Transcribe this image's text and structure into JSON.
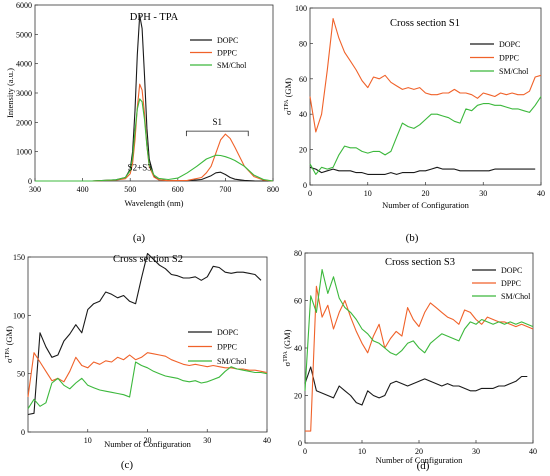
{
  "colors": {
    "black": "#1a1a1a",
    "orange": "#f0622a",
    "green": "#3cb83c"
  },
  "chart_data": [
    {
      "panel_label": "(a)",
      "type": "line",
      "title": "DPH - TPA",
      "xlabel": "Wavelength (nm)",
      "ylabel": "Intensity (a.u.)",
      "xlim": [
        300,
        800
      ],
      "ylim": [
        0,
        6000
      ],
      "xticks": [
        300,
        400,
        500,
        600,
        700,
        800
      ],
      "yticks": [
        0,
        1000,
        2000,
        3000,
        4000,
        5000,
        6000
      ],
      "legend_position": "top-right",
      "annotations": [
        "S1",
        "S2+S3"
      ],
      "series": [
        {
          "name": "DOPC",
          "color": "#1a1a1a",
          "x": [
            300,
            420,
            470,
            490,
            500,
            505,
            510,
            515,
            520,
            525,
            530,
            535,
            540,
            550,
            560,
            580,
            620,
            650,
            670,
            680,
            690,
            700,
            710,
            720,
            740,
            760,
            800
          ],
          "y": [
            0,
            0,
            40,
            120,
            400,
            1000,
            2400,
            4300,
            5650,
            5200,
            3600,
            1800,
            750,
            150,
            40,
            10,
            10,
            50,
            180,
            280,
            300,
            220,
            120,
            60,
            20,
            5,
            0
          ]
        },
        {
          "name": "DPPC",
          "color": "#f0622a",
          "x": [
            300,
            420,
            470,
            490,
            500,
            505,
            510,
            515,
            520,
            525,
            530,
            535,
            540,
            550,
            560,
            580,
            620,
            650,
            660,
            670,
            680,
            690,
            700,
            710,
            720,
            740,
            760,
            780,
            800
          ],
          "y": [
            0,
            0,
            30,
            80,
            250,
            600,
            1400,
            2500,
            3300,
            3100,
            2300,
            1200,
            500,
            130,
            40,
            10,
            20,
            120,
            280,
            500,
            950,
            1400,
            1600,
            1450,
            1150,
            500,
            150,
            30,
            0
          ]
        },
        {
          "name": "SM/Chol",
          "color": "#3cb83c",
          "x": [
            300,
            420,
            470,
            490,
            500,
            505,
            510,
            515,
            520,
            525,
            530,
            535,
            540,
            550,
            560,
            580,
            600,
            620,
            640,
            660,
            680,
            690,
            700,
            710,
            720,
            740,
            760,
            780,
            800
          ],
          "y": [
            0,
            0,
            40,
            120,
            350,
            800,
            1700,
            2450,
            2800,
            2700,
            2100,
            1200,
            550,
            200,
            90,
            50,
            100,
            280,
            500,
            750,
            880,
            870,
            830,
            770,
            700,
            500,
            200,
            50,
            0
          ]
        }
      ]
    },
    {
      "panel_label": "(b)",
      "type": "line",
      "title": "Cross section S1",
      "xlabel": "Number of Configuration",
      "ylabel": "σTPA (GM)",
      "xlim": [
        0,
        40
      ],
      "ylim": [
        0,
        100
      ],
      "xticks": [
        0,
        10,
        20,
        30,
        40
      ],
      "yticks": [
        0,
        20,
        40,
        60,
        80,
        100
      ],
      "legend_position": "top-right",
      "series": [
        {
          "name": "DOPC",
          "color": "#1a1a1a",
          "x": [
            0,
            1,
            2,
            3,
            4,
            5,
            6,
            7,
            8,
            9,
            10,
            11,
            12,
            13,
            14,
            15,
            16,
            17,
            18,
            19,
            20,
            21,
            22,
            23,
            24,
            25,
            26,
            27,
            28,
            29,
            30,
            31,
            32,
            33,
            34,
            35,
            36,
            37,
            38,
            39
          ],
          "y": [
            10,
            9,
            7,
            8,
            9,
            8,
            8,
            8,
            7,
            7,
            6,
            6,
            6,
            6,
            7,
            6,
            7,
            7,
            7,
            8,
            8,
            9,
            10,
            9,
            9,
            9,
            8,
            8,
            8,
            8,
            8,
            8,
            9,
            9,
            9,
            9,
            9,
            9,
            9,
            9
          ]
        },
        {
          "name": "DPPC",
          "color": "#f0622a",
          "x": [
            0,
            1,
            2,
            3,
            4,
            5,
            6,
            7,
            8,
            9,
            10,
            11,
            12,
            13,
            14,
            15,
            16,
            17,
            18,
            19,
            20,
            21,
            22,
            23,
            24,
            25,
            26,
            27,
            28,
            29,
            30,
            31,
            32,
            33,
            34,
            35,
            36,
            37,
            38,
            39,
            40
          ],
          "y": [
            50,
            30,
            40,
            65,
            94,
            83,
            75,
            70,
            65,
            59,
            55,
            61,
            60,
            62,
            58,
            56,
            54,
            55,
            54,
            55,
            52,
            51,
            51,
            52,
            52,
            54,
            52,
            52,
            51,
            49,
            52,
            51,
            50,
            52,
            51,
            52,
            51,
            51,
            53,
            61,
            62
          ]
        },
        {
          "name": "SM/Chol",
          "color": "#3cb83c",
          "x": [
            0,
            1,
            2,
            3,
            4,
            5,
            6,
            7,
            8,
            9,
            10,
            11,
            12,
            13,
            14,
            15,
            16,
            17,
            18,
            19,
            20,
            21,
            22,
            23,
            24,
            25,
            26,
            27,
            28,
            29,
            30,
            31,
            32,
            33,
            34,
            35,
            36,
            37,
            38,
            39,
            40
          ],
          "y": [
            12,
            6,
            10,
            9,
            10,
            17,
            22,
            21,
            21,
            19,
            18,
            19,
            19,
            17,
            19,
            27,
            35,
            33,
            32,
            34,
            37,
            40,
            40,
            39,
            38,
            36,
            35,
            43,
            42,
            45,
            46,
            46,
            45,
            45,
            44,
            43,
            43,
            42,
            41,
            45,
            50
          ]
        }
      ]
    },
    {
      "panel_label": "(c)",
      "type": "line",
      "title": "Cross section S2",
      "xlabel": "Number of Configuration",
      "ylabel": "σTPA (GM)",
      "xlim": [
        0,
        40
      ],
      "ylim": [
        0,
        150
      ],
      "xticks": [
        10,
        20,
        30,
        40
      ],
      "yticks": [
        0,
        50,
        100,
        150
      ],
      "legend_position": "center-right",
      "series": [
        {
          "name": "DOPC",
          "color": "#1a1a1a",
          "x": [
            0,
            1,
            2,
            3,
            4,
            5,
            6,
            7,
            8,
            9,
            10,
            11,
            12,
            13,
            14,
            15,
            16,
            17,
            18,
            19,
            20,
            21,
            22,
            23,
            24,
            25,
            26,
            27,
            28,
            29,
            30,
            31,
            32,
            33,
            34,
            35,
            36,
            37,
            38,
            39
          ],
          "y": [
            15,
            16,
            85,
            73,
            64,
            66,
            78,
            84,
            92,
            85,
            105,
            110,
            112,
            120,
            118,
            115,
            117,
            112,
            110,
            132,
            153,
            148,
            143,
            140,
            135,
            134,
            132,
            132,
            133,
            130,
            133,
            142,
            141,
            137,
            136,
            137,
            137,
            136,
            135,
            130
          ]
        },
        {
          "name": "DPPC",
          "color": "#f0622a",
          "x": [
            0,
            1,
            2,
            3,
            4,
            5,
            6,
            7,
            8,
            9,
            10,
            11,
            12,
            13,
            14,
            15,
            16,
            17,
            18,
            19,
            20,
            21,
            22,
            23,
            24,
            25,
            26,
            27,
            28,
            29,
            30,
            31,
            32,
            33,
            34,
            35,
            36,
            37,
            38,
            39,
            40
          ],
          "y": [
            30,
            68,
            60,
            52,
            44,
            46,
            43,
            52,
            64,
            57,
            55,
            60,
            58,
            61,
            60,
            64,
            62,
            66,
            62,
            64,
            68,
            67,
            66,
            65,
            62,
            60,
            58,
            57,
            58,
            57,
            56,
            57,
            56,
            55,
            55,
            54,
            54,
            53,
            53,
            52,
            51
          ]
        },
        {
          "name": "SM/Chol",
          "color": "#3cb83c",
          "x": [
            0,
            1,
            2,
            3,
            4,
            5,
            6,
            7,
            8,
            9,
            10,
            11,
            12,
            13,
            14,
            15,
            16,
            17,
            18,
            19,
            20,
            21,
            22,
            23,
            24,
            25,
            26,
            27,
            28,
            29,
            30,
            31,
            32,
            33,
            34,
            35,
            36,
            37,
            38,
            39,
            40
          ],
          "y": [
            20,
            28,
            22,
            25,
            42,
            46,
            40,
            37,
            42,
            46,
            40,
            38,
            36,
            35,
            34,
            33,
            32,
            30,
            60,
            57,
            55,
            52,
            50,
            48,
            47,
            46,
            44,
            43,
            44,
            42,
            43,
            45,
            47,
            52,
            56,
            54,
            53,
            52,
            51,
            51,
            50
          ]
        }
      ]
    },
    {
      "panel_label": "(d)",
      "type": "line",
      "title": "Cross section S3",
      "xlabel": "Number of Configuration",
      "ylabel": "σTPA (GM)",
      "xlim": [
        0,
        40
      ],
      "ylim": [
        0,
        80
      ],
      "xticks": [
        0,
        10,
        20,
        30,
        40
      ],
      "yticks": [
        0,
        20,
        40,
        60,
        80
      ],
      "legend_position": "top-right",
      "series": [
        {
          "name": "DOPC",
          "color": "#1a1a1a",
          "x": [
            0,
            1,
            2,
            3,
            4,
            5,
            6,
            7,
            8,
            9,
            10,
            11,
            12,
            13,
            14,
            15,
            16,
            17,
            18,
            19,
            20,
            21,
            22,
            23,
            24,
            25,
            26,
            27,
            28,
            29,
            30,
            31,
            32,
            33,
            34,
            35,
            36,
            37,
            38,
            39
          ],
          "y": [
            25,
            32,
            22,
            21,
            20,
            19,
            24,
            22,
            20,
            17,
            16,
            22,
            20,
            19,
            20,
            25,
            26,
            25,
            24,
            25,
            26,
            27,
            26,
            25,
            24,
            25,
            24,
            24,
            23,
            22,
            22,
            23,
            23,
            23,
            24,
            24,
            25,
            26,
            28,
            28
          ]
        },
        {
          "name": "DPPC",
          "color": "#f0622a",
          "x": [
            0,
            1,
            2,
            3,
            4,
            5,
            6,
            7,
            8,
            9,
            10,
            11,
            12,
            13,
            14,
            15,
            16,
            17,
            18,
            19,
            20,
            21,
            22,
            23,
            24,
            25,
            26,
            27,
            28,
            29,
            30,
            31,
            32,
            33,
            34,
            35,
            36,
            37,
            38,
            39,
            40
          ],
          "y": [
            5,
            5,
            66,
            53,
            58,
            48,
            55,
            60,
            53,
            47,
            42,
            38,
            45,
            50,
            40,
            44,
            47,
            45,
            57,
            52,
            49,
            55,
            59,
            57,
            55,
            53,
            52,
            50,
            56,
            55,
            52,
            50,
            53,
            52,
            51,
            51,
            50,
            49,
            50,
            49,
            48
          ]
        },
        {
          "name": "SM/Chol",
          "color": "#3cb83c",
          "x": [
            0,
            1,
            2,
            3,
            4,
            5,
            6,
            7,
            8,
            9,
            10,
            11,
            12,
            13,
            14,
            15,
            16,
            17,
            18,
            19,
            20,
            21,
            22,
            23,
            24,
            25,
            26,
            27,
            28,
            29,
            30,
            31,
            32,
            33,
            34,
            35,
            36,
            37,
            38,
            39,
            40
          ],
          "y": [
            22,
            62,
            55,
            73,
            63,
            70,
            61,
            57,
            55,
            52,
            48,
            46,
            43,
            42,
            40,
            38,
            37,
            39,
            42,
            43,
            40,
            38,
            42,
            44,
            46,
            45,
            44,
            43,
            48,
            51,
            50,
            52,
            51,
            50,
            51,
            50,
            51,
            50,
            51,
            50,
            49
          ]
        }
      ]
    }
  ]
}
